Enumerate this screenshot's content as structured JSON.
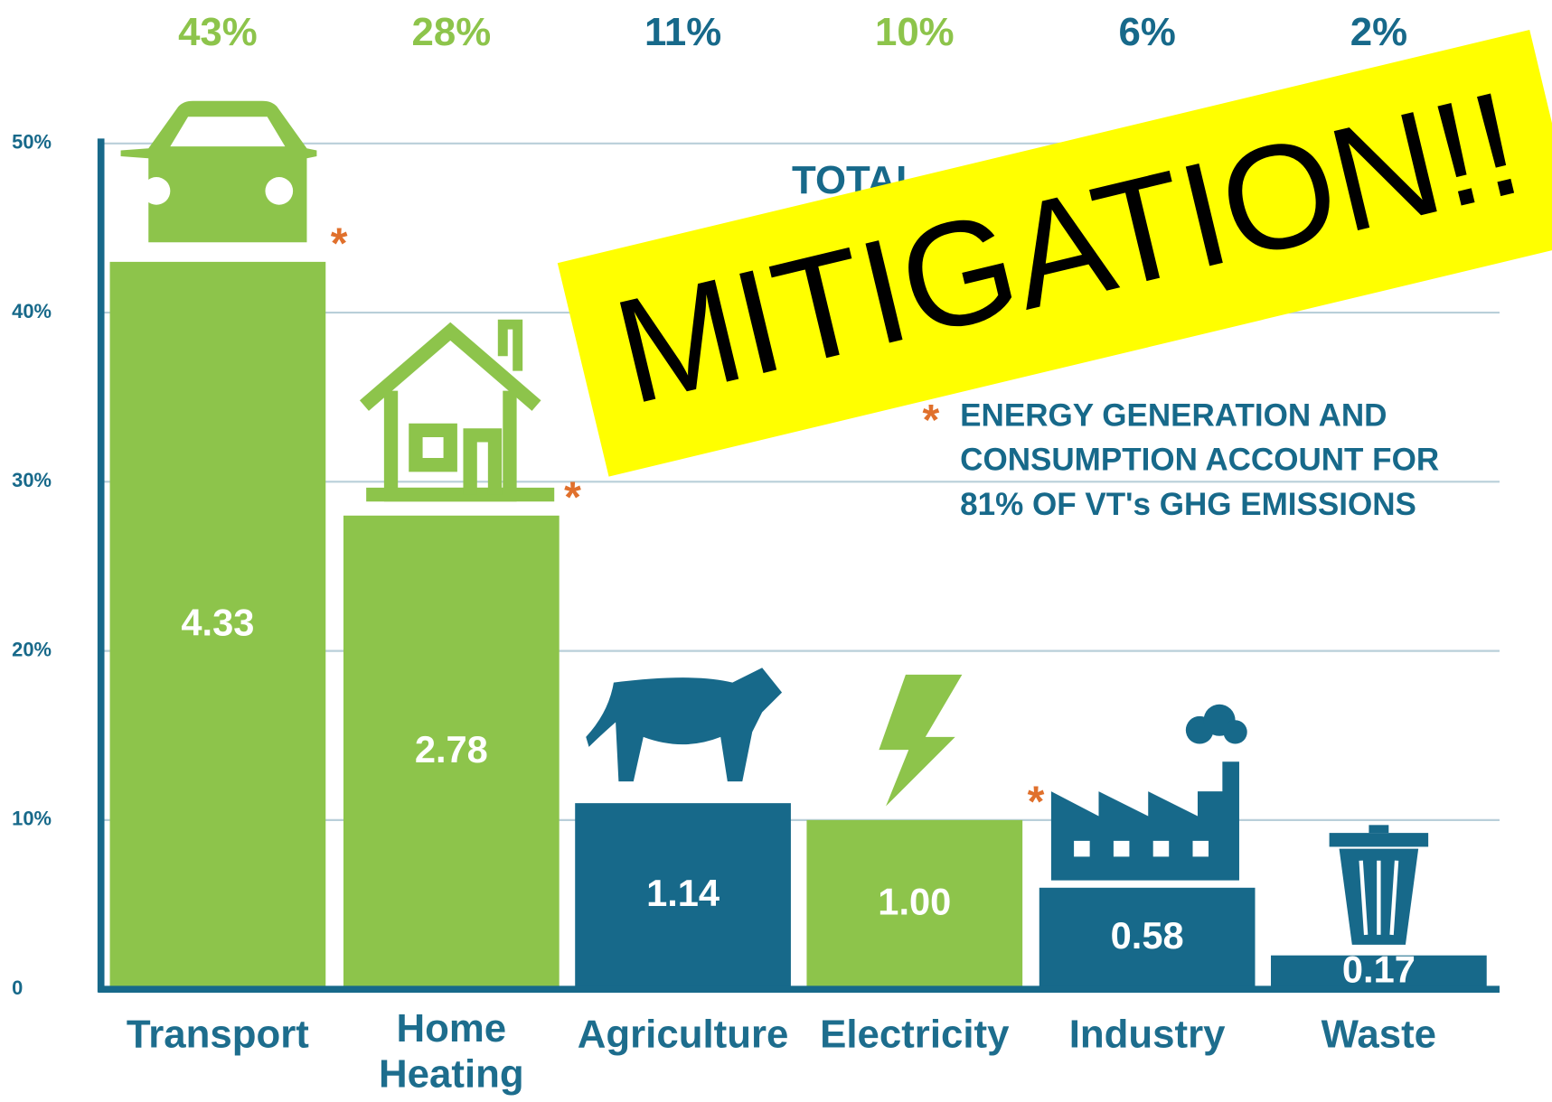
{
  "chart_data": {
    "type": "bar",
    "categories": [
      "Transport",
      "Home Heating",
      "Agriculture",
      "Electricity",
      "Industry",
      "Waste"
    ],
    "values": [
      43,
      28,
      11,
      10,
      6,
      2
    ],
    "value_labels": [
      "43%",
      "28%",
      "11%",
      "10%",
      "6%",
      "2%"
    ],
    "amount_labels": [
      "4.33",
      "2.78",
      "1.14",
      "1.00",
      "0.58",
      "0.17"
    ],
    "colors": [
      "#8dc44b",
      "#8dc44b",
      "#17698a",
      "#8dc44b",
      "#17698a",
      "#17698a"
    ],
    "starred": [
      true,
      true,
      false,
      true,
      false,
      false
    ],
    "asterisk": "*",
    "ylim": [
      0,
      50
    ],
    "yticks": [
      0,
      {
        "value": 10,
        "label": "10%"
      },
      {
        "value": 20,
        "label": "20%"
      },
      {
        "value": 30,
        "label": "30%"
      },
      {
        "value": 40,
        "label": "40%"
      },
      {
        "value": 50,
        "label": "50%"
      }
    ],
    "grid": true,
    "total_text": "TOTAL",
    "note": [
      "ENERGY GENERATION AND",
      "CONSUMPTION ACCOUNT FOR",
      "81% OF VT's GHG EMISSIONS"
    ],
    "banner": "MITIGATION!!"
  }
}
